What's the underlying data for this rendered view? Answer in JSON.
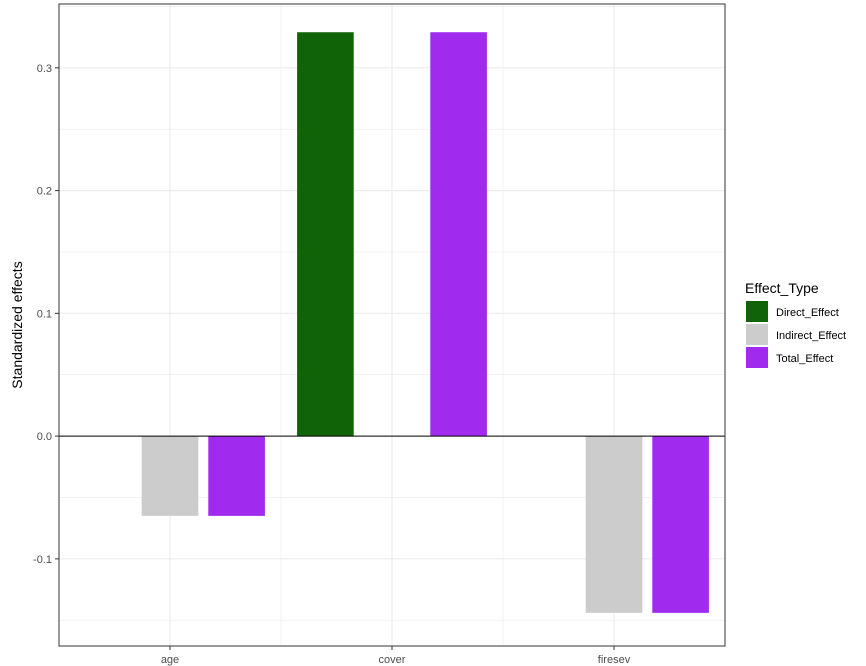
{
  "chart_data": {
    "type": "bar",
    "categories": [
      "age",
      "cover",
      "firesev"
    ],
    "series": [
      {
        "name": "Direct_Effect",
        "color": "#116308",
        "values": [
          null,
          0.329,
          null
        ]
      },
      {
        "name": "Indirect_Effect",
        "color": "#cccccc",
        "values": [
          -0.065,
          null,
          -0.144
        ]
      },
      {
        "name": "Total_Effect",
        "color": "#a02aed",
        "values": [
          -0.065,
          0.329,
          -0.144
        ]
      }
    ],
    "ylabel": "Standardized effects",
    "xlabel": "",
    "ylim": [
      -0.171,
      0.352
    ],
    "yticks": [
      -0.1,
      0.0,
      0.1,
      0.2,
      0.3
    ],
    "ytick_labels": [
      "-0.1",
      "0.0",
      "0.1",
      "0.2",
      "0.3"
    ],
    "legend": {
      "title": "Effect_Type",
      "position": "right"
    },
    "grid": true,
    "zero_line": true
  }
}
